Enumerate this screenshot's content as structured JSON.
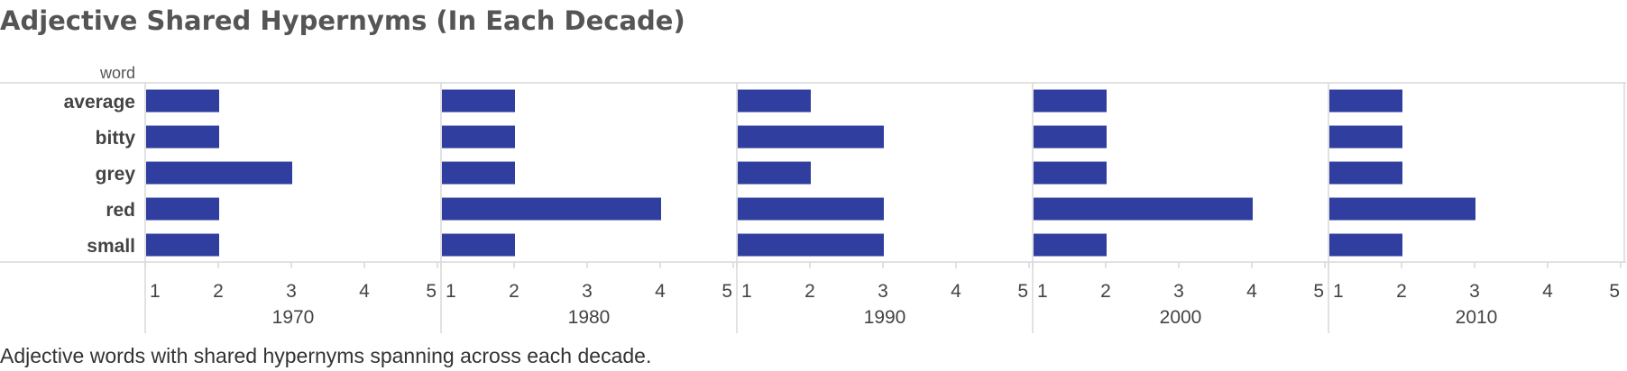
{
  "title": "Adjective Shared Hypernyms (In Each Decade)",
  "caption": "Adjective words with shared hypernyms spanning across each decade.",
  "colors": {
    "bar": "#303f9f",
    "grid": "#d9d9d9",
    "text": "#444444"
  },
  "chart_data": {
    "type": "bar",
    "orientation": "horizontal",
    "row_field_label": "word",
    "categories": [
      "average",
      "bitty",
      "grey",
      "red",
      "small"
    ],
    "panels": [
      {
        "label": "1970",
        "values": [
          2,
          2,
          3,
          2,
          2
        ]
      },
      {
        "label": "1980",
        "values": [
          2,
          2,
          2,
          4,
          2
        ]
      },
      {
        "label": "1990",
        "values": [
          2,
          3,
          2,
          3,
          3
        ]
      },
      {
        "label": "2000",
        "values": [
          2,
          2,
          2,
          4,
          2
        ]
      },
      {
        "label": "2010",
        "values": [
          2,
          2,
          2,
          3,
          2
        ]
      }
    ],
    "xlim": [
      1,
      5
    ],
    "xticks": [
      "1",
      "2",
      "3",
      "4",
      "5"
    ],
    "grid": false,
    "legend": "none"
  }
}
